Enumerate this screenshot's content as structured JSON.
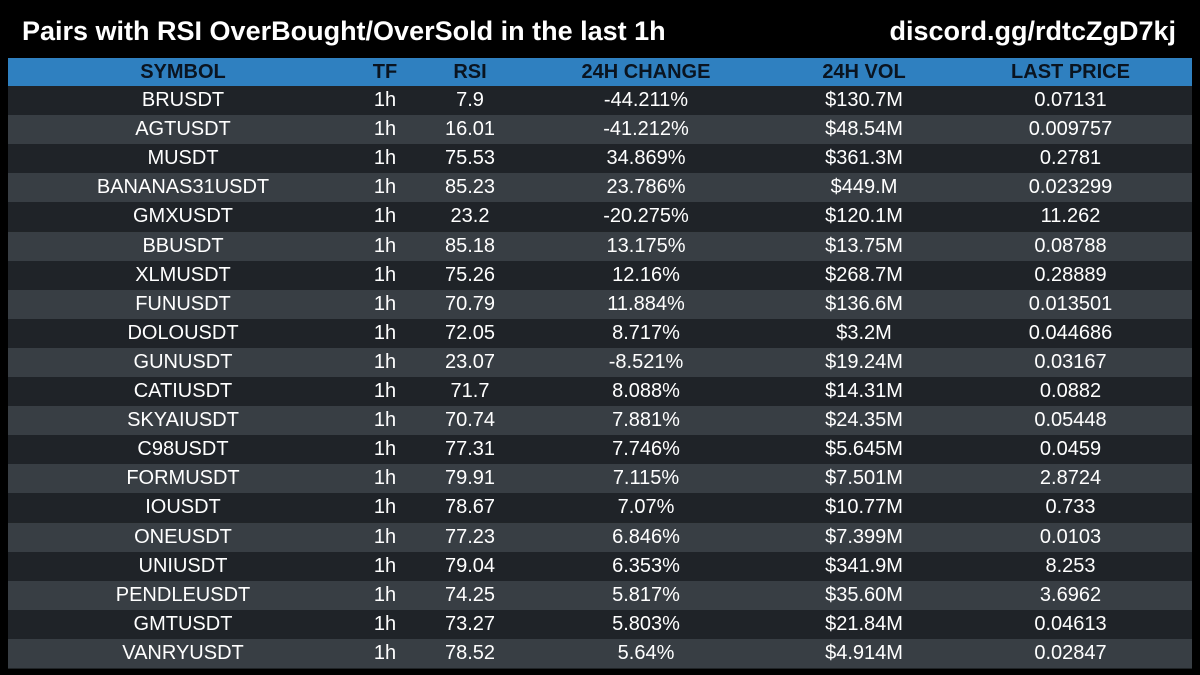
{
  "header": {
    "title": "Pairs with RSI OverBought/OverSold in the last 1h",
    "invite": "discord.gg/rdtcZgD7kj"
  },
  "table": {
    "columns": [
      "SYMBOL",
      "TF",
      "RSI",
      "24H CHANGE",
      "24H VOL",
      "LAST PRICE"
    ],
    "rows": [
      [
        "BRUSDT",
        "1h",
        "7.9",
        "-44.211%",
        "$130.7M",
        "0.07131"
      ],
      [
        "AGTUSDT",
        "1h",
        "16.01",
        "-41.212%",
        "$48.54M",
        "0.009757"
      ],
      [
        "MUSDT",
        "1h",
        "75.53",
        "34.869%",
        "$361.3M",
        "0.2781"
      ],
      [
        "BANANAS31USDT",
        "1h",
        "85.23",
        "23.786%",
        "$449.M",
        "0.023299"
      ],
      [
        "GMXUSDT",
        "1h",
        "23.2",
        "-20.275%",
        "$120.1M",
        "11.262"
      ],
      [
        "BBUSDT",
        "1h",
        "85.18",
        "13.175%",
        "$13.75M",
        "0.08788"
      ],
      [
        "XLMUSDT",
        "1h",
        "75.26",
        "12.16%",
        "$268.7M",
        "0.28889"
      ],
      [
        "FUNUSDT",
        "1h",
        "70.79",
        "11.884%",
        "$136.6M",
        "0.013501"
      ],
      [
        "DOLOUSDT",
        "1h",
        "72.05",
        "8.717%",
        "$3.2M",
        "0.044686"
      ],
      [
        "GUNUSDT",
        "1h",
        "23.07",
        "-8.521%",
        "$19.24M",
        "0.03167"
      ],
      [
        "CATIUSDT",
        "1h",
        "71.7",
        "8.088%",
        "$14.31M",
        "0.0882"
      ],
      [
        "SKYAIUSDT",
        "1h",
        "70.74",
        "7.881%",
        "$24.35M",
        "0.05448"
      ],
      [
        "C98USDT",
        "1h",
        "77.31",
        "7.746%",
        "$5.645M",
        "0.0459"
      ],
      [
        "FORMUSDT",
        "1h",
        "79.91",
        "7.115%",
        "$7.501M",
        "2.8724"
      ],
      [
        "IOUSDT",
        "1h",
        "78.67",
        "7.07%",
        "$10.77M",
        "0.733"
      ],
      [
        "ONEUSDT",
        "1h",
        "77.23",
        "6.846%",
        "$7.399M",
        "0.0103"
      ],
      [
        "UNIUSDT",
        "1h",
        "79.04",
        "6.353%",
        "$341.9M",
        "8.253"
      ],
      [
        "PENDLEUSDT",
        "1h",
        "74.25",
        "5.817%",
        "$35.60M",
        "3.6962"
      ],
      [
        "GMTUSDT",
        "1h",
        "73.27",
        "5.803%",
        "$21.84M",
        "0.04613"
      ],
      [
        "VANRYUSDT",
        "1h",
        "78.52",
        "5.64%",
        "$4.914M",
        "0.02847"
      ]
    ]
  },
  "colors": {
    "header_bg": "#2f80c0",
    "row_dark": "#1f2328",
    "row_light": "#383e44",
    "text": "#ffffff"
  }
}
